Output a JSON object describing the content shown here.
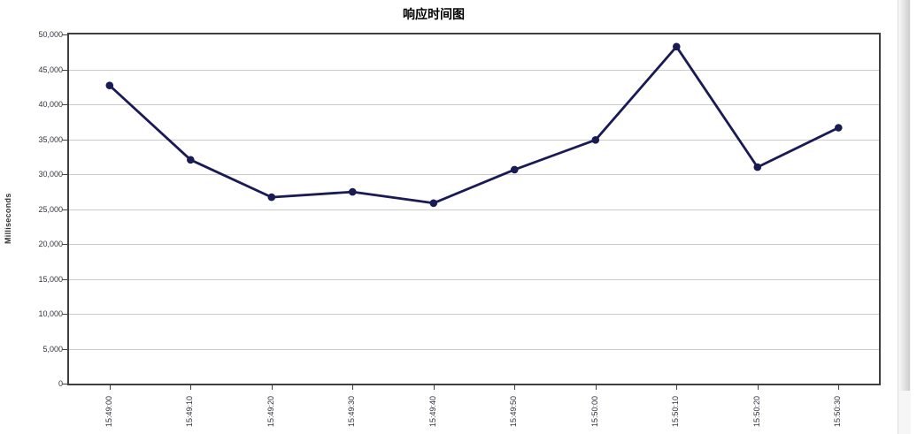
{
  "chart_data": {
    "type": "line",
    "title": "响应时间图",
    "xlabel": "",
    "ylabel": "Milliseconds",
    "categories": [
      "15:49:00",
      "15:49:10",
      "15:49:20",
      "15:49:30",
      "15:49:40",
      "15:49:50",
      "15:50:00",
      "15:50:10",
      "15:50:20",
      "15:50:30"
    ],
    "values": [
      42700,
      32050,
      26700,
      27450,
      25850,
      30650,
      34900,
      48250,
      31000,
      36650
    ],
    "ylim": [
      0,
      50000
    ],
    "ytick_labels": [
      "0",
      "5,000",
      "10,000",
      "15,000",
      "20,000",
      "25,000",
      "30,000",
      "35,000",
      "40,000",
      "45,000",
      "50,000"
    ],
    "grid": true,
    "legend": "none",
    "line_color": "#1a1a55",
    "marker_color": "#1a1a55",
    "frame_color": "#3f3f3f",
    "gridline_color": "#cccccc"
  }
}
